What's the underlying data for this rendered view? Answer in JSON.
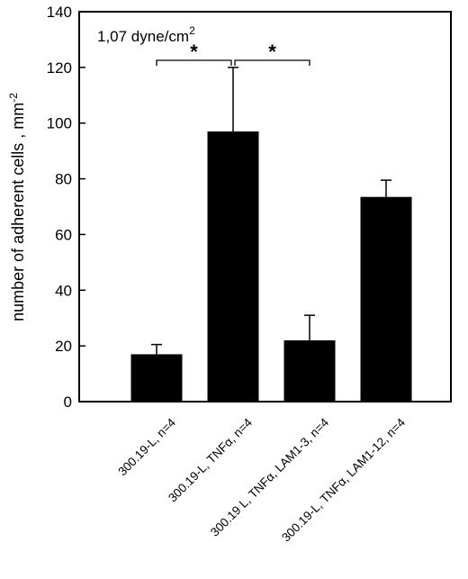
{
  "chart_data": {
    "type": "bar",
    "title": "",
    "xlabel": "",
    "ylabel": "number of adherent cells , mm",
    "ylabel_superscript": "-2",
    "ylim": [
      0,
      140
    ],
    "yticks": [
      0,
      20,
      40,
      60,
      80,
      100,
      120,
      140
    ],
    "grid": false,
    "categories": [
      "300.19-L, n=4",
      "300.19-L, TNFα, n=4",
      "300.19 L, TNFα, LAM1-3, n=4",
      "300.19-L, TNFα, LAM1-12, n=4"
    ],
    "values": [
      17,
      97,
      22,
      73.5
    ],
    "errors": [
      3.5,
      23,
      9,
      6
    ],
    "bar_color": "#000000",
    "annotation": {
      "text": "1,07 dyne/cm",
      "superscript": "2"
    },
    "significance": [
      {
        "from": 0,
        "to": 1,
        "label": "*"
      },
      {
        "from": 1,
        "to": 2,
        "label": "*"
      }
    ]
  }
}
